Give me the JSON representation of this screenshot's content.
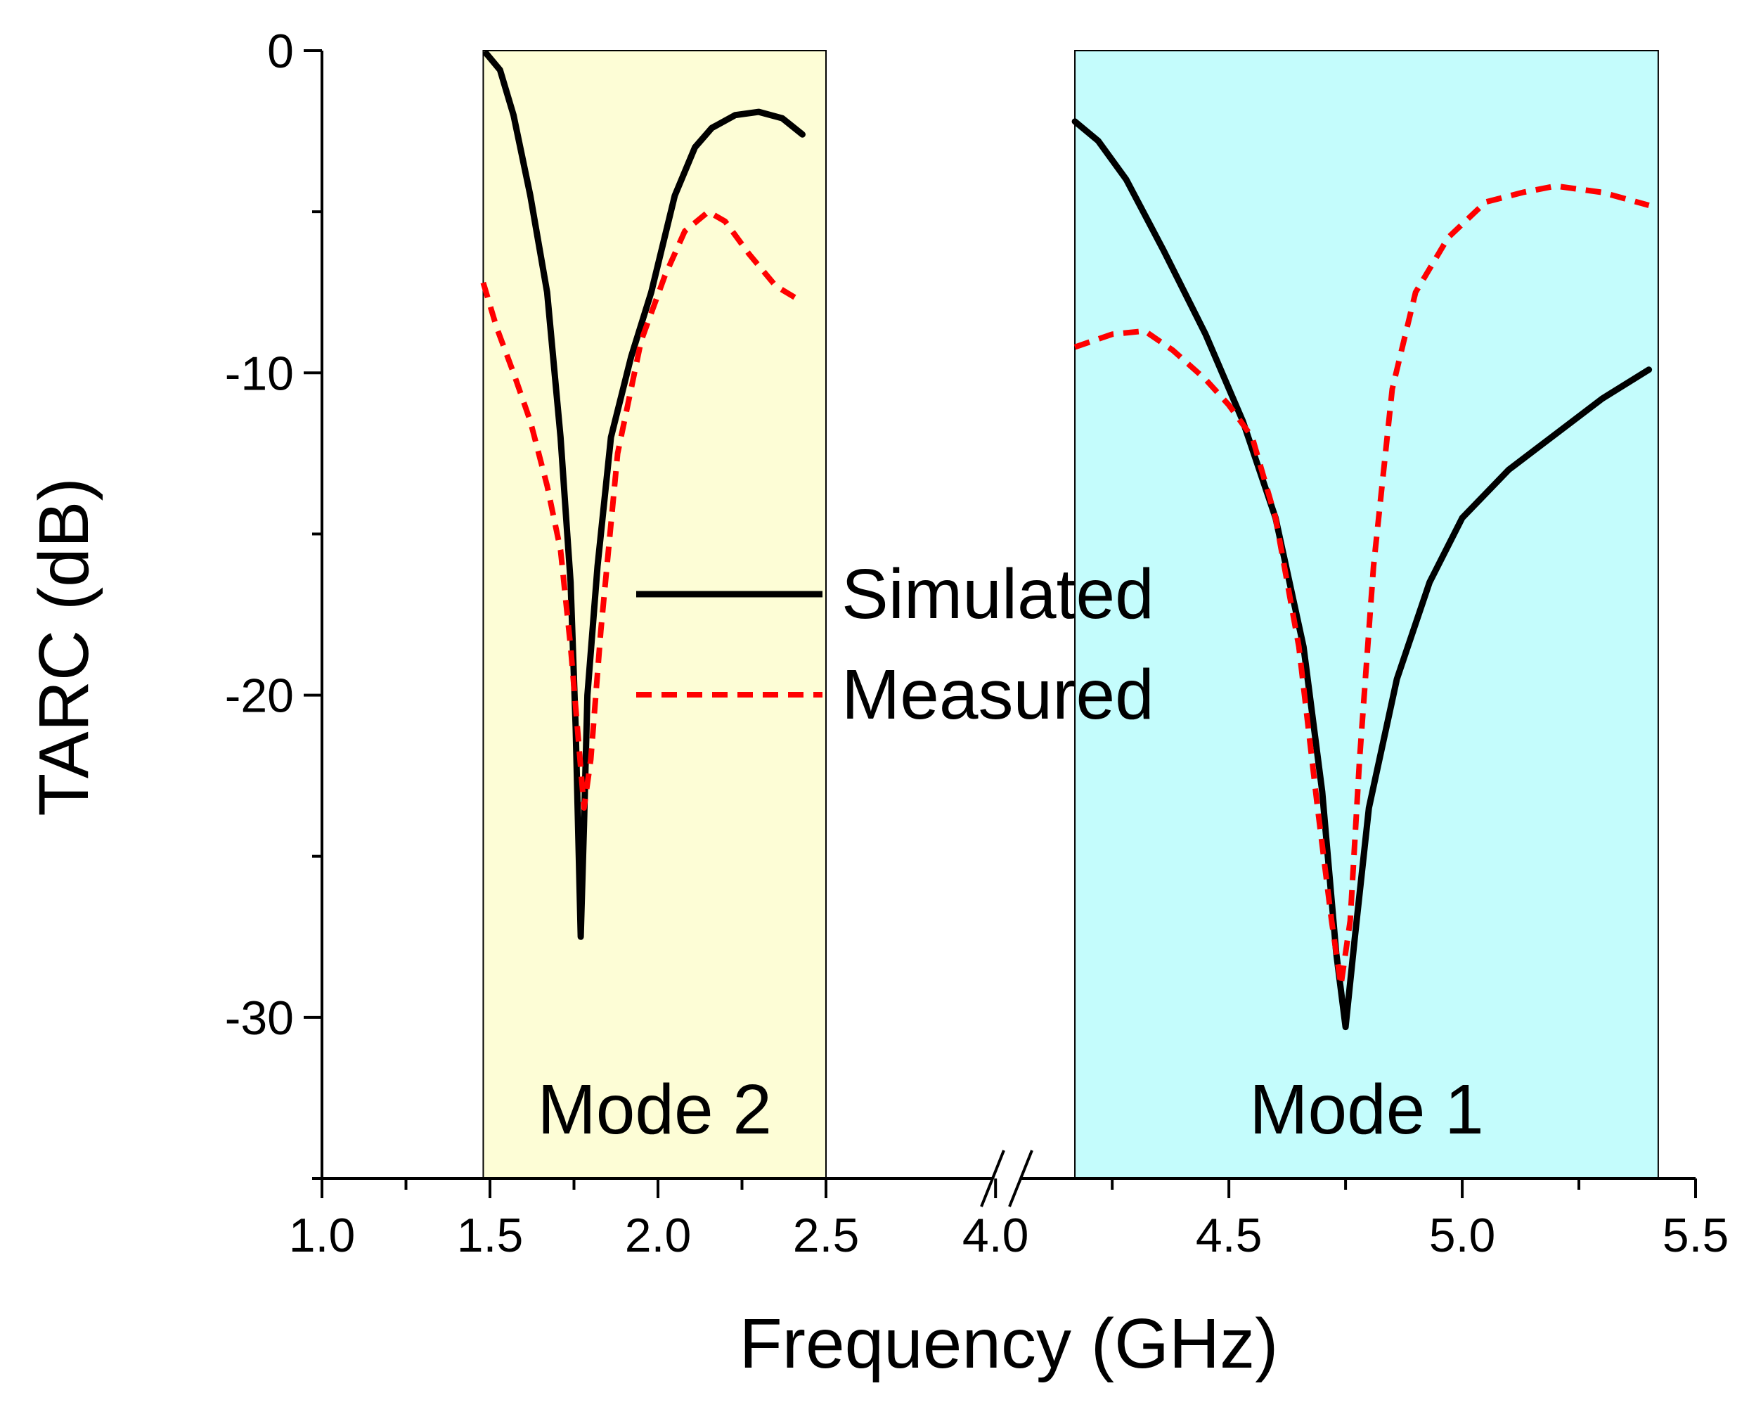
{
  "chart_data": {
    "type": "line",
    "xlabel": "Frequency (GHz)",
    "ylabel": "TARC (dB)",
    "ylim": [
      -35,
      0
    ],
    "x_broken_axis": true,
    "x_segments": [
      {
        "range": [
          1.0,
          2.5
        ],
        "ticks": [
          "1.0",
          "1.5",
          "2.0",
          "2.5"
        ]
      },
      {
        "range": [
          3.95,
          5.5
        ],
        "ticks": [
          "4.0",
          "4.5",
          "5.0",
          "5.5"
        ]
      }
    ],
    "y_ticks": [
      "0",
      "-10",
      "-20",
      "-30"
    ],
    "regions": [
      {
        "label": "Mode 2",
        "x": [
          1.48,
          2.5
        ],
        "color": "#fdfdd6"
      },
      {
        "label": "Mode 1",
        "x": [
          4.17,
          5.42
        ],
        "color": "#c4fcfc"
      }
    ],
    "legend": [
      {
        "label": "Simulated",
        "color": "#000000",
        "dash": "solid"
      },
      {
        "label": "Measured",
        "color": "#ff0000",
        "dash": "dashed"
      }
    ],
    "series": [
      {
        "name": "Simulated",
        "color": "#000000",
        "segments": [
          {
            "x": [
              1.49,
              1.53,
              1.57,
              1.62,
              1.67,
              1.71,
              1.74,
              1.755,
              1.77,
              1.78,
              1.79,
              1.82,
              1.86,
              1.92,
              1.98,
              2.05,
              2.11,
              2.16,
              2.23,
              2.3,
              2.37,
              2.43
            ],
            "y": [
              -0.1,
              -0.6,
              -2.0,
              -4.5,
              -7.5,
              -12.0,
              -16.5,
              -21.0,
              -27.5,
              -24.0,
              -20.0,
              -16.0,
              -12.0,
              -9.5,
              -7.5,
              -4.5,
              -3.0,
              -2.4,
              -2.0,
              -1.9,
              -2.1,
              -2.6
            ]
          },
          {
            "x": [
              4.17,
              4.22,
              4.28,
              4.36,
              4.45,
              4.53,
              4.6,
              4.66,
              4.7,
              4.73,
              4.75,
              4.77,
              4.8,
              4.86,
              4.93,
              5.0,
              5.1,
              5.2,
              5.3,
              5.4
            ],
            "y": [
              -2.2,
              -2.8,
              -4.0,
              -6.2,
              -8.8,
              -11.5,
              -14.5,
              -18.5,
              -23.0,
              -28.0,
              -30.3,
              -27.5,
              -23.5,
              -19.5,
              -16.5,
              -14.5,
              -13.0,
              -11.9,
              -10.8,
              -9.9
            ]
          }
        ]
      },
      {
        "name": "Measured",
        "color": "#ff0000",
        "segments": [
          {
            "x": [
              1.48,
              1.52,
              1.57,
              1.62,
              1.67,
              1.71,
              1.74,
              1.76,
              1.78,
              1.8,
              1.83,
              1.88,
              1.95,
              2.02,
              2.08,
              2.15,
              2.2,
              2.27,
              2.35,
              2.43
            ],
            "y": [
              -7.2,
              -8.6,
              -10.0,
              -11.5,
              -13.5,
              -15.5,
              -18.5,
              -21.0,
              -23.5,
              -22.0,
              -18.0,
              -12.5,
              -9.0,
              -7.0,
              -5.6,
              -5.0,
              -5.3,
              -6.3,
              -7.3,
              -7.8
            ]
          },
          {
            "x": [
              4.17,
              4.25,
              4.32,
              4.38,
              4.45,
              4.5,
              4.55,
              4.6,
              4.65,
              4.69,
              4.72,
              4.74,
              4.76,
              4.78,
              4.81,
              4.85,
              4.9,
              4.97,
              5.05,
              5.13,
              5.2,
              5.3,
              5.4
            ],
            "y": [
              -9.2,
              -8.8,
              -8.7,
              -9.3,
              -10.2,
              -11.0,
              -12.0,
              -14.5,
              -18.5,
              -23.5,
              -27.0,
              -29.0,
              -27.0,
              -22.0,
              -16.0,
              -10.5,
              -7.5,
              -5.8,
              -4.7,
              -4.4,
              -4.2,
              -4.4,
              -4.8
            ]
          }
        ]
      }
    ]
  }
}
